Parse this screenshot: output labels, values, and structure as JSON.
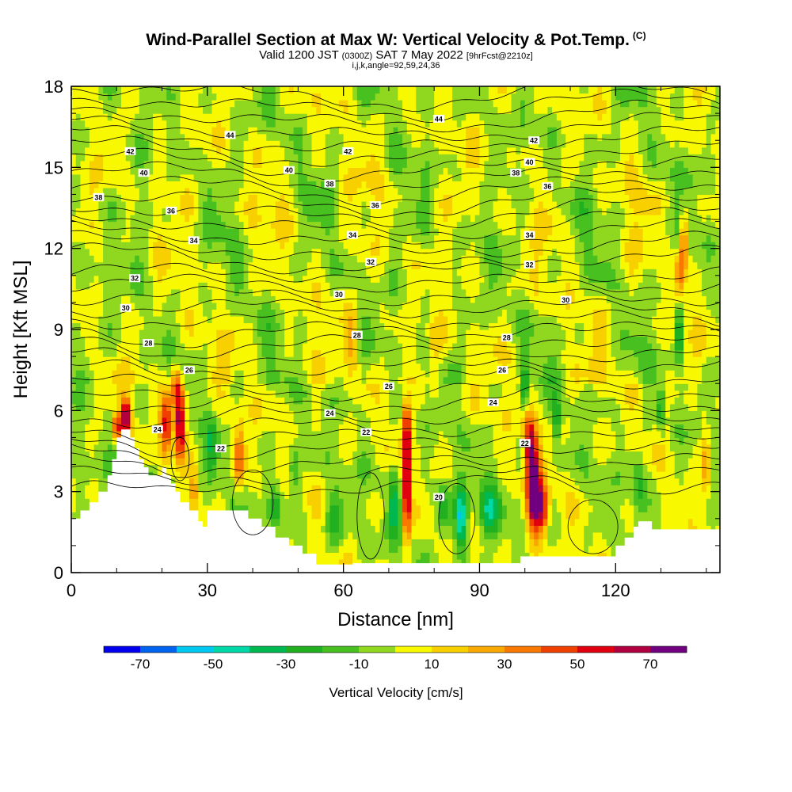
{
  "header": {
    "title": "Wind-Parallel Section at Max W: Vertical Velocity & Pot.Temp.",
    "title_mark": "(C)",
    "valid_prefix": "Valid 1200 JST",
    "valid_utc": "(0300Z)",
    "valid_date": "SAT 7 May 2022",
    "forecast": "[9hrFcst@2210z]",
    "indices": "i,j,k,angle=92,59,24,36"
  },
  "chart_data": {
    "type": "heatmap",
    "xlabel": "Distance [nm]",
    "ylabel": "Height [Kft MSL]",
    "xlim": [
      0,
      143
    ],
    "ylim": [
      0,
      18
    ],
    "xticks": [
      0,
      30,
      60,
      90,
      120
    ],
    "yticks": [
      0,
      3,
      6,
      9,
      12,
      15,
      18
    ],
    "colorbar": {
      "title": "Vertical Velocity [cm/s]",
      "bins": [
        -80,
        -70,
        -60,
        -50,
        -40,
        -30,
        -20,
        -10,
        0,
        10,
        20,
        30,
        40,
        50,
        60,
        70,
        80
      ],
      "colors": [
        "#0000ee",
        "#0064f0",
        "#00c8f0",
        "#00d8a8",
        "#00b850",
        "#20b020",
        "#48c020",
        "#90d820",
        "#f8f800",
        "#f8d000",
        "#f8a800",
        "#f87800",
        "#f04000",
        "#e00010",
        "#b00040",
        "#700080"
      ],
      "labels": [
        -70,
        -50,
        -30,
        -10,
        10,
        30,
        50,
        70
      ]
    },
    "theta_contours": {
      "labels": [
        {
          "x": 81,
          "y": 16.8,
          "v": "44"
        },
        {
          "x": 35,
          "y": 16.2,
          "v": "44"
        },
        {
          "x": 102,
          "y": 16.0,
          "v": "42"
        },
        {
          "x": 61,
          "y": 15.6,
          "v": "42"
        },
        {
          "x": 13,
          "y": 15.6,
          "v": "42"
        },
        {
          "x": 101,
          "y": 15.2,
          "v": "40"
        },
        {
          "x": 48,
          "y": 14.9,
          "v": "40"
        },
        {
          "x": 16,
          "y": 14.8,
          "v": "40"
        },
        {
          "x": 98,
          "y": 14.8,
          "v": "38"
        },
        {
          "x": 57,
          "y": 14.4,
          "v": "38"
        },
        {
          "x": 6,
          "y": 13.9,
          "v": "38"
        },
        {
          "x": 105,
          "y": 14.3,
          "v": "36"
        },
        {
          "x": 67,
          "y": 13.6,
          "v": "36"
        },
        {
          "x": 22,
          "y": 13.4,
          "v": "36"
        },
        {
          "x": 101,
          "y": 12.5,
          "v": "34"
        },
        {
          "x": 62,
          "y": 12.5,
          "v": "34"
        },
        {
          "x": 27,
          "y": 12.3,
          "v": "34"
        },
        {
          "x": 66,
          "y": 11.5,
          "v": "32"
        },
        {
          "x": 101,
          "y": 11.4,
          "v": "32"
        },
        {
          "x": 14,
          "y": 10.9,
          "v": "32"
        },
        {
          "x": 59,
          "y": 10.3,
          "v": "30"
        },
        {
          "x": 109,
          "y": 10.1,
          "v": "30"
        },
        {
          "x": 12,
          "y": 9.8,
          "v": "30"
        },
        {
          "x": 63,
          "y": 8.8,
          "v": "28"
        },
        {
          "x": 96,
          "y": 8.7,
          "v": "28"
        },
        {
          "x": 17,
          "y": 8.5,
          "v": "28"
        },
        {
          "x": 26,
          "y": 7.5,
          "v": "26"
        },
        {
          "x": 95,
          "y": 7.5,
          "v": "26"
        },
        {
          "x": 70,
          "y": 6.9,
          "v": "26"
        },
        {
          "x": 93,
          "y": 6.3,
          "v": "24"
        },
        {
          "x": 57,
          "y": 5.9,
          "v": "24"
        },
        {
          "x": 19,
          "y": 5.3,
          "v": "24"
        },
        {
          "x": 65,
          "y": 5.2,
          "v": "22"
        },
        {
          "x": 100,
          "y": 4.8,
          "v": "22"
        },
        {
          "x": 33,
          "y": 4.6,
          "v": "22"
        },
        {
          "x": 81,
          "y": 2.8,
          "v": "20"
        }
      ]
    }
  }
}
